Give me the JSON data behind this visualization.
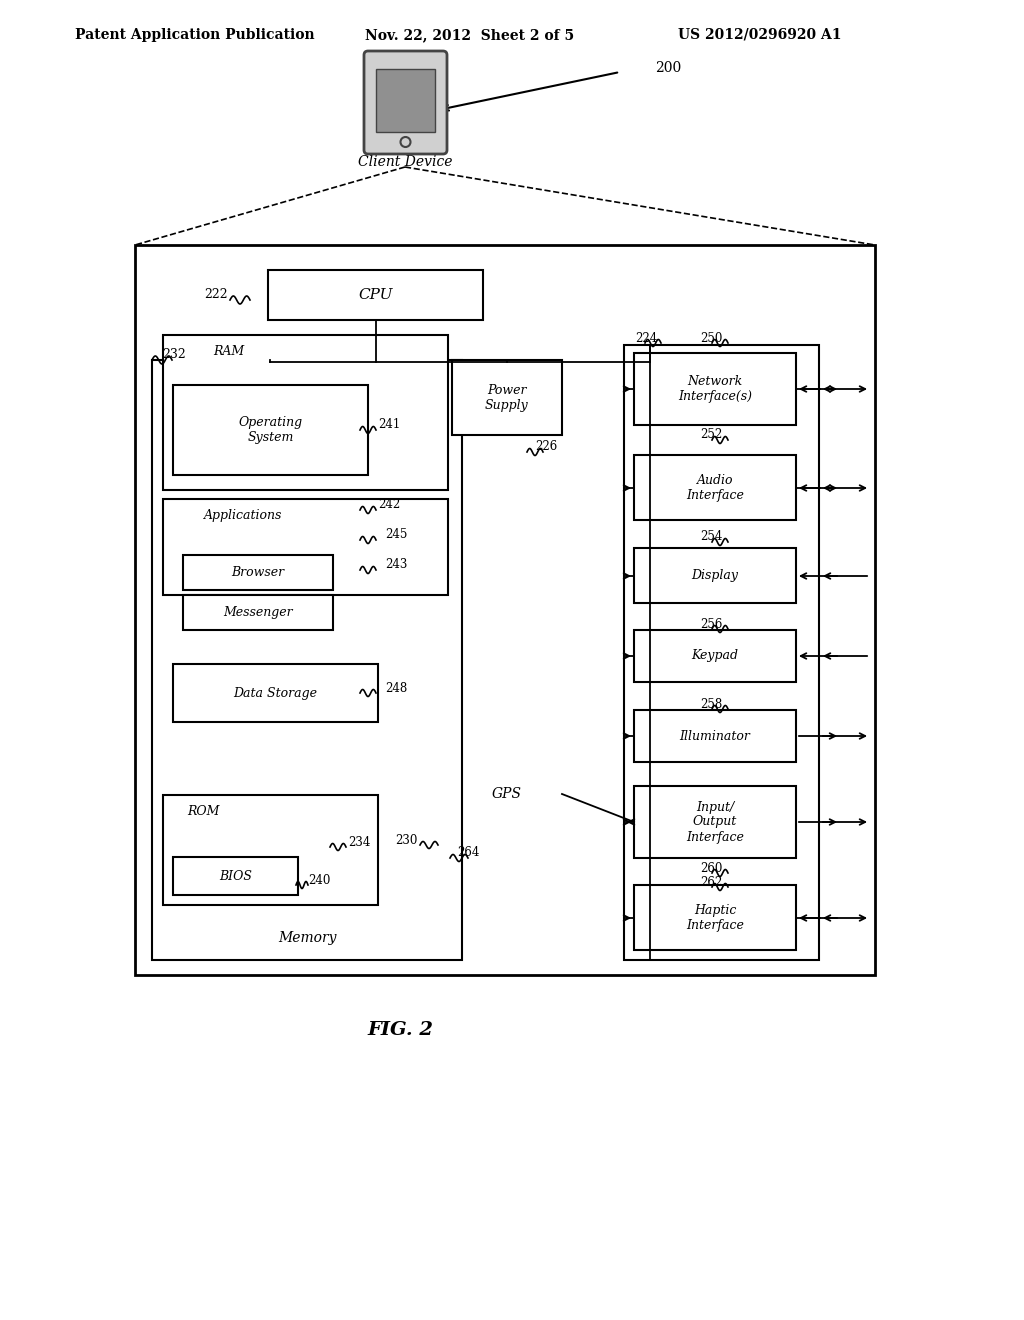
{
  "title_left": "Patent Application Publication",
  "title_mid": "Nov. 22, 2012  Sheet 2 of 5",
  "title_right": "US 2012/0296920 A1",
  "fig_label": "FIG. 2",
  "bg_color": "#ffffff",
  "line_color": "#000000",
  "labels": {
    "200": "200",
    "client_device": "Client Device",
    "cpu": "CPU",
    "ram": "RAM",
    "222": "222",
    "224": "224",
    "226": "226",
    "230": "230",
    "232": "232",
    "234": "234",
    "240": "240",
    "241": "241",
    "242": "242",
    "243": "243",
    "245": "245",
    "248": "248",
    "250": "250",
    "252": "252",
    "254": "254",
    "256": "256",
    "258": "258",
    "260": "260",
    "262": "262",
    "264": "264",
    "power_supply": "Power\nSupply",
    "network": "Network\nInterface(s)",
    "audio": "Audio\nInterface",
    "display": "Display",
    "keypad": "Keypad",
    "illuminator": "Illuminator",
    "io": "Input/\nOutput\nInterface",
    "haptic": "Haptic\nInterface",
    "operating_system": "Operating\nSystem",
    "applications": "Applications",
    "browser": "Browser",
    "messenger": "Messenger",
    "data_storage": "Data Storage",
    "rom": "ROM",
    "bios": "BIOS",
    "memory": "Memory",
    "gps": "GPS"
  }
}
